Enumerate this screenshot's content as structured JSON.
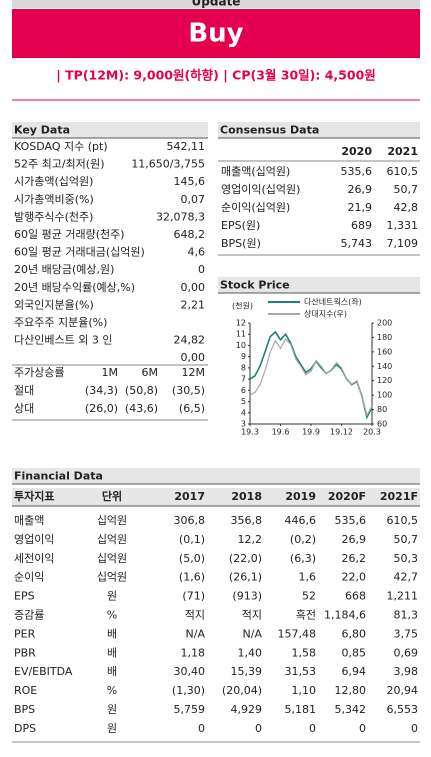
{
  "banner": {
    "tag": "Update",
    "rating": "Buy",
    "target": "| TP(12M): 9,000원(하향) | CP(3월 30일): 4,500원"
  },
  "key_data": {
    "title": "Key Data",
    "rows": [
      [
        "KOSDAQ 지수 (pt)",
        "542,11"
      ],
      [
        "52주 최고/최저(원)",
        "11,650/3,755"
      ],
      [
        "시가총액(십억원)",
        "145,6"
      ],
      [
        "시가총액비중(%)",
        "0,07"
      ],
      [
        "발행주식수(천주)",
        "32,078,3"
      ],
      [
        "60일 평균 거래량(천주)",
        "648,2"
      ],
      [
        "60일 평균 거래대금(십억원)",
        "4,6"
      ],
      [
        "20년 배당금(예상,원)",
        "0"
      ],
      [
        "20년 배당수익률(예상,%)",
        "0,00"
      ],
      [
        "외국인지분율(%)",
        "2,21"
      ],
      [
        "주요주주 지분율(%)"
      ],
      [
        "  다산인베스트 외 3 인",
        "24,82"
      ],
      [
        null,
        "0,00"
      ]
    ],
    "returns_header": [
      "주가상승률",
      "1M",
      "6M",
      "12M"
    ],
    "returns": [
      [
        "절대",
        "(34,3)",
        "(50,8)",
        "(30,5)"
      ],
      [
        "상대",
        "(26,0)",
        "(43,6)",
        "(6,5)"
      ]
    ]
  },
  "consensus": {
    "title": "Consensus Data",
    "header": [
      "2020",
      "2021"
    ],
    "rows": [
      [
        "매출액(십억원)",
        "535,6",
        "610,5"
      ],
      [
        "영업이익(십억원)",
        "26,9",
        "50,7"
      ],
      [
        "순이익(십억원)",
        "21,9",
        "42,8"
      ],
      [
        "EPS(원)",
        "689",
        "1,331"
      ],
      [
        "BPS(원)",
        "5,743",
        "7,109"
      ]
    ]
  },
  "chart_data": {
    "type": "line",
    "title": "Stock Price",
    "y_label": "(천원)",
    "xlim": [
      0,
      24
    ],
    "xticks": [
      {
        "value": 0,
        "label": "19.3"
      },
      {
        "value": 6,
        "label": "19.6"
      },
      {
        "value": 12,
        "label": "19.9"
      },
      {
        "value": 18,
        "label": "19.12"
      },
      {
        "value": 24,
        "label": "20.3"
      }
    ],
    "ylim": [
      3,
      12
    ],
    "yticks": [
      3,
      4,
      5,
      6,
      7,
      8,
      9,
      10,
      11,
      12
    ],
    "y2lim": [
      60,
      200
    ],
    "y2ticks": [
      60,
      80,
      100,
      120,
      140,
      160,
      180,
      200
    ],
    "x": [
      0,
      1,
      2,
      3,
      4,
      5,
      6,
      7,
      8,
      9,
      10,
      11,
      12,
      13,
      14,
      15,
      16,
      17,
      18,
      19,
      20,
      21,
      22,
      23,
      24
    ],
    "series": [
      {
        "name": "다산네트웍스(좌)",
        "color": "#1f7f7a",
        "values": [
          7.0,
          7.3,
          8.2,
          9.5,
          10.8,
          11.2,
          10.5,
          11.0,
          10.2,
          9.0,
          8.3,
          7.6,
          7.9,
          8.6,
          8.0,
          7.5,
          7.8,
          8.3,
          7.9,
          7.0,
          6.5,
          6.8,
          5.5,
          3.6,
          4.5
        ]
      },
      {
        "name": "상대지수(우)",
        "color": "#a8a8a8",
        "axis": "y2",
        "values": [
          100,
          104,
          115,
          135,
          160,
          175,
          165,
          178,
          170,
          150,
          140,
          128,
          133,
          148,
          140,
          130,
          135,
          145,
          138,
          122,
          115,
          120,
          98,
          72,
          85
        ]
      }
    ]
  },
  "financial": {
    "title": "Financial Data",
    "header": [
      "투자지표",
      "단위",
      "2017",
      "2018",
      "2019",
      "2020F",
      "2021F"
    ],
    "rows": [
      [
        "매출액",
        "십억원",
        "306,8",
        "356,8",
        "446,6",
        "535,6",
        "610,5"
      ],
      [
        "영업이익",
        "십억원",
        "(0,1)",
        "12,2",
        "(0,2)",
        "26,9",
        "50,7"
      ],
      [
        "세전이익",
        "십억원",
        "(5,0)",
        "(22,0)",
        "(6,3)",
        "26,2",
        "50,3"
      ],
      [
        "순이익",
        "십억원",
        "(1,6)",
        "(26,1)",
        "1,6",
        "22,0",
        "42,7"
      ],
      [
        "EPS",
        "원",
        "(71)",
        "(913)",
        "52",
        "668",
        "1,211"
      ],
      [
        "증감률",
        "%",
        "적지",
        "적지",
        "흑전",
        "1,184,6",
        "81,3"
      ],
      [
        "PER",
        "배",
        "N/A",
        "N/A",
        "157,48",
        "6,80",
        "3,75"
      ],
      [
        "PBR",
        "배",
        "1,18",
        "1,40",
        "1,58",
        "0,85",
        "0,69"
      ],
      [
        "EV/EBITDA",
        "배",
        "30,40",
        "15,39",
        "31,53",
        "6,94",
        "3,98"
      ],
      [
        "ROE",
        "%",
        "(1,30)",
        "(20,04)",
        "1,10",
        "12,80",
        "20,94"
      ],
      [
        "BPS",
        "원",
        "5,759",
        "4,929",
        "5,181",
        "5,342",
        "6,553"
      ],
      [
        "DPS",
        "원",
        "0",
        "0",
        "0",
        "0",
        "0"
      ]
    ]
  }
}
